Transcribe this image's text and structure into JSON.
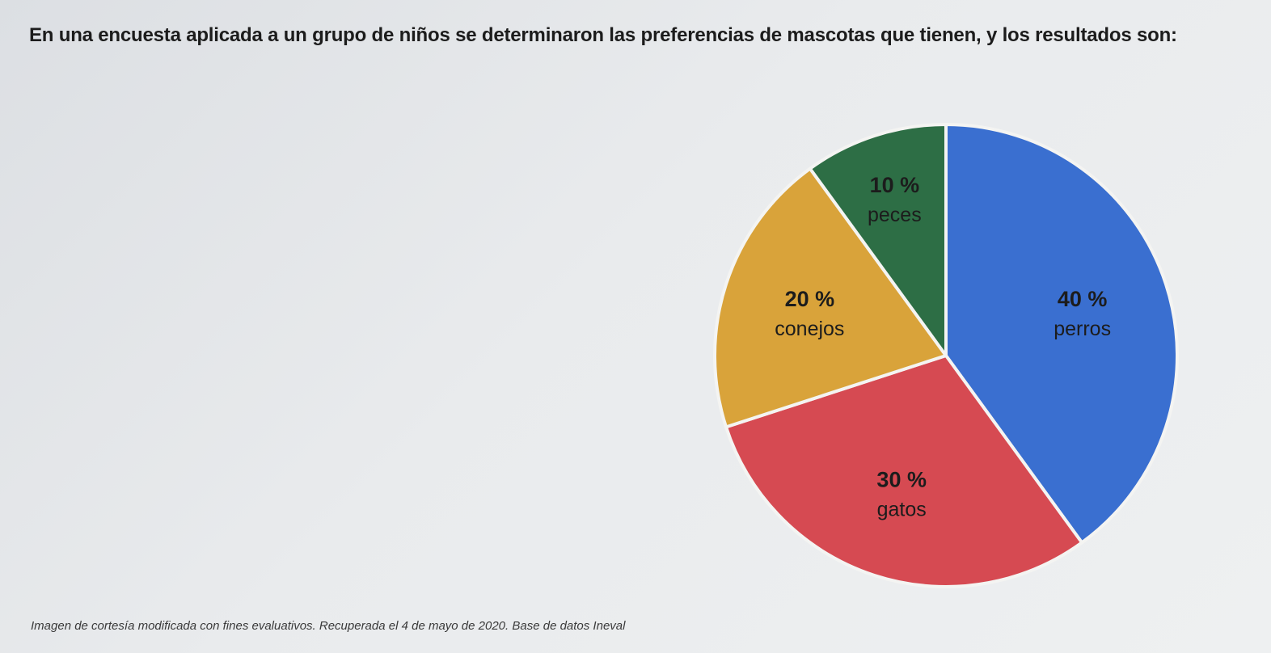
{
  "question": "En una encuesta aplicada a un grupo de niños se determinaron las preferencias de mascotas que tienen, y los resultados son:",
  "credit": "Imagen de cortesía modificada con fines evaluativos. Recuperada el 4 de mayo de 2020. Base de datos Ineval",
  "chart_data": {
    "type": "pie",
    "slices": [
      {
        "name": "perros",
        "value": 40,
        "pct_label": "40 %",
        "color": "#3a6fd0"
      },
      {
        "name": "gatos",
        "value": 30,
        "pct_label": "30 %",
        "color": "#d64a52"
      },
      {
        "name": "conejos",
        "value": 20,
        "pct_label": "20 %",
        "color": "#d9a33a"
      },
      {
        "name": "peces",
        "value": 10,
        "pct_label": "10 %",
        "color": "#2d6e45"
      }
    ],
    "start": "top, clockwise",
    "legend": "none"
  }
}
